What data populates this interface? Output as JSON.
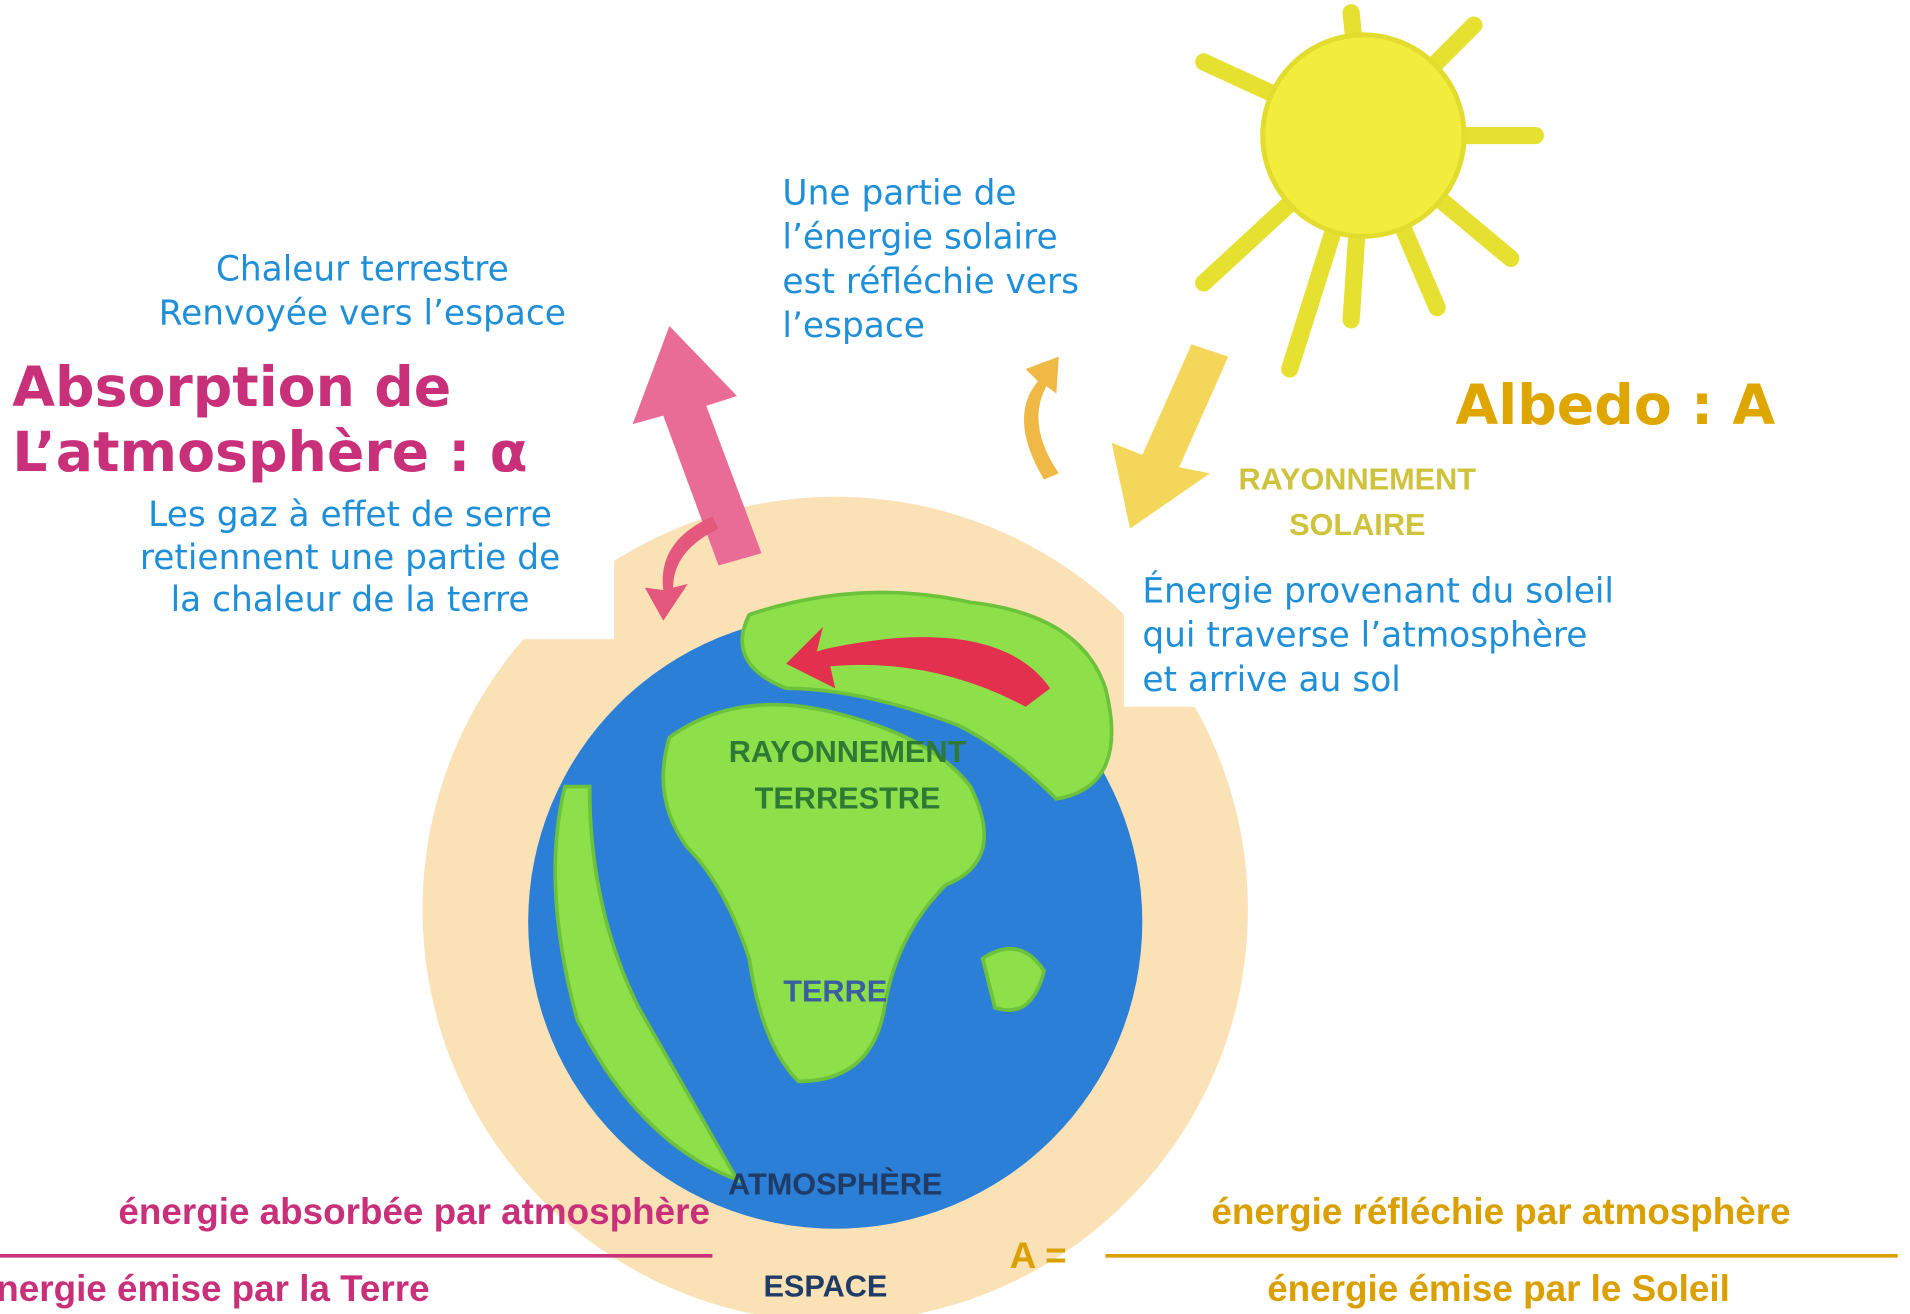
{
  "earth_heat": {
    "lines": [
      "Chaleur terrestre",
      "Renvoyée vers l’espace"
    ]
  },
  "absorption": {
    "title_lines": [
      "Absorption de",
      "L’atmosphère : α"
    ],
    "text_lines": [
      "Les gaz à effet de serre",
      "retiennent une partie de",
      "la chaleur de la terre"
    ]
  },
  "reflection": {
    "lines": [
      "Une partie de",
      "l’énergie solaire",
      "est réfléchie vers",
      "l’espace"
    ]
  },
  "albedo": {
    "title": "Albedo : A"
  },
  "solar_radiation": {
    "lines": [
      "RAYONNEMENT",
      "SOLAIRE"
    ]
  },
  "ground_energy": {
    "lines": [
      "Énergie provenant du soleil",
      "qui traverse l’atmosphère",
      "et arrive au sol"
    ]
  },
  "terrestrial_radiation": {
    "lines": [
      "RAYONNEMENT",
      "TERRESTRE"
    ]
  },
  "zones": {
    "earth": "TERRE",
    "atmosphere": "ATMOSPHÈRE",
    "space": "ESPACE"
  },
  "formula_alpha": {
    "numerator": "énergie absorbée par atmosphère",
    "denominator": "énergie émise par la Terre"
  },
  "formula_albedo": {
    "lhs": "A =",
    "numerator": "énergie réfléchie par atmosphère",
    "denominator": "énergie émise par le Soleil"
  }
}
